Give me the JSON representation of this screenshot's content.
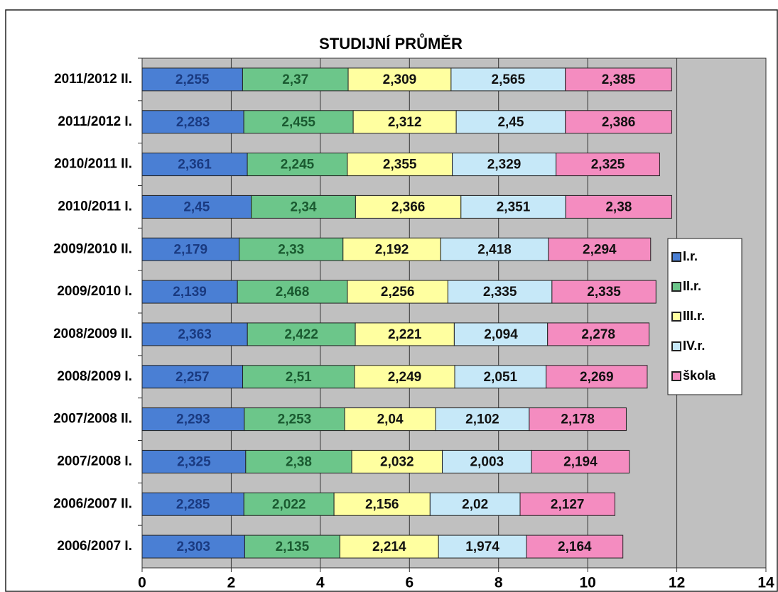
{
  "chart_data": {
    "type": "stacked-barh",
    "title": "STUDIJNÍ PRŮMĚR",
    "categories": [
      "2011/2012 II.",
      "2011/2012 I.",
      "2010/2011 II.",
      "2010/2011 I.",
      "2009/2010 II.",
      "2009/2010 I.",
      "2008/2009 II.",
      "2008/2009 I.",
      "2007/2008 II.",
      "2007/2008 I.",
      "2006/2007 II.",
      "2006/2007 I."
    ],
    "series": [
      {
        "name": "I.r.",
        "color": "#4a7fd4",
        "values": [
          2.255,
          2.283,
          2.361,
          2.45,
          2.179,
          2.139,
          2.363,
          2.257,
          2.293,
          2.325,
          2.285,
          2.303
        ],
        "value_labels": [
          "2,255",
          "2,283",
          "2,361",
          "2,45",
          "2,179",
          "2,139",
          "2,363",
          "2,257",
          "2,293",
          "2,325",
          "2,285",
          "2,303"
        ]
      },
      {
        "name": "II.r.",
        "color": "#6cc68a",
        "values": [
          2.37,
          2.455,
          2.245,
          2.34,
          2.33,
          2.468,
          2.422,
          2.51,
          2.253,
          2.38,
          2.022,
          2.135
        ],
        "value_labels": [
          "2,37",
          "2,455",
          "2,245",
          "2,34",
          "2,33",
          "2,468",
          "2,422",
          "2,51",
          "2,253",
          "2,38",
          "2,022",
          "2,135"
        ]
      },
      {
        "name": "III.r.",
        "color": "#ffffa0",
        "values": [
          2.309,
          2.312,
          2.355,
          2.366,
          2.192,
          2.256,
          2.221,
          2.249,
          2.04,
          2.032,
          2.156,
          2.214
        ],
        "value_labels": [
          "2,309",
          "2,312",
          "2,355",
          "2,366",
          "2,192",
          "2,256",
          "2,221",
          "2,249",
          "2,04",
          "2,032",
          "2,156",
          "2,214"
        ]
      },
      {
        "name": "IV.r.",
        "color": "#c6e8f8",
        "values": [
          2.565,
          2.45,
          2.329,
          2.351,
          2.418,
          2.335,
          2.094,
          2.051,
          2.102,
          2.003,
          2.02,
          1.974
        ],
        "value_labels": [
          "2,565",
          "2,45",
          "2,329",
          "2,351",
          "2,418",
          "2,335",
          "2,094",
          "2,051",
          "2,102",
          "2,003",
          "2,02",
          "1,974"
        ]
      },
      {
        "name": "škola",
        "color": "#f48cc0",
        "values": [
          2.385,
          2.386,
          2.325,
          2.38,
          2.294,
          2.335,
          2.278,
          2.269,
          2.178,
          2.194,
          2.127,
          2.164
        ],
        "value_labels": [
          "2,385",
          "2,386",
          "2,325",
          "2,38",
          "2,294",
          "2,335",
          "2,278",
          "2,269",
          "2,178",
          "2,194",
          "2,127",
          "2,164"
        ]
      }
    ],
    "xlim": [
      0,
      14
    ],
    "xticks": [
      0,
      2,
      4,
      6,
      8,
      10,
      12,
      14
    ],
    "grid": true,
    "legend": "right"
  }
}
